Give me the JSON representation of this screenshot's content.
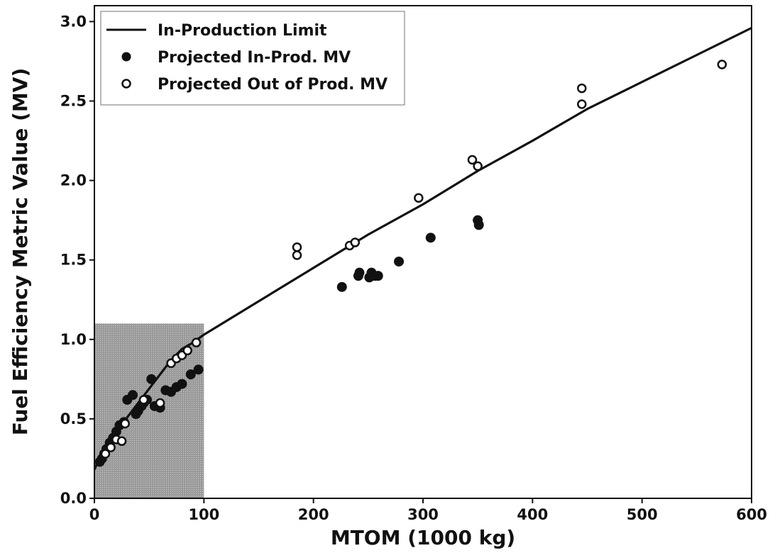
{
  "chart_data": {
    "type": "scatter",
    "xlabel": "MTOM (1000 kg)",
    "ylabel": "Fuel Efficiency Metric Value (MV)",
    "xlim": [
      0,
      600
    ],
    "ylim": [
      0,
      3.1
    ],
    "xticks": [
      "0",
      "100",
      "200",
      "300",
      "400",
      "500",
      "600"
    ],
    "yticks": [
      "0.0",
      "0.5",
      "1.0",
      "1.5",
      "2.0",
      "2.5",
      "3.0"
    ],
    "grid": false,
    "legend_position": "top-left",
    "shaded_region": {
      "x": [
        0,
        100
      ],
      "y": [
        0,
        1.1
      ]
    },
    "series": [
      {
        "name": "In-Production Limit",
        "kind": "line",
        "x": [
          0,
          5,
          10,
          20,
          30,
          40,
          50,
          60,
          70,
          80,
          90,
          100,
          150,
          200,
          250,
          300,
          350,
          400,
          450,
          500,
          550,
          600
        ],
        "y": [
          0.18,
          0.26,
          0.31,
          0.41,
          0.51,
          0.6,
          0.69,
          0.78,
          0.87,
          0.94,
          0.98,
          1.03,
          1.24,
          1.45,
          1.66,
          1.85,
          2.06,
          2.25,
          2.45,
          2.62,
          2.79,
          2.96
        ]
      },
      {
        "name": "Projected In-Prod. MV",
        "kind": "filled",
        "x": [
          226,
          241,
          242,
          251,
          253,
          256,
          259,
          278,
          307,
          350,
          351,
          5,
          7,
          9,
          11,
          14,
          17,
          20,
          23,
          27,
          30,
          35,
          38,
          40,
          43,
          45,
          48,
          52,
          55,
          60,
          65,
          70,
          75,
          80,
          88,
          95
        ],
        "y": [
          1.33,
          1.4,
          1.42,
          1.39,
          1.42,
          1.4,
          1.4,
          1.49,
          1.64,
          1.75,
          1.72,
          0.23,
          0.25,
          0.28,
          0.31,
          0.35,
          0.38,
          0.42,
          0.46,
          0.48,
          0.62,
          0.65,
          0.53,
          0.55,
          0.58,
          0.6,
          0.62,
          0.75,
          0.58,
          0.57,
          0.68,
          0.67,
          0.7,
          0.72,
          0.78,
          0.81
        ]
      },
      {
        "name": "Projected Out of Prod. MV",
        "kind": "hollow",
        "x": [
          185,
          185,
          233,
          238,
          296,
          345,
          350,
          445,
          445,
          573,
          10,
          15,
          20,
          25,
          28,
          45,
          60,
          70,
          75,
          80,
          85,
          93
        ],
        "y": [
          1.58,
          1.53,
          1.59,
          1.61,
          1.89,
          2.13,
          2.09,
          2.58,
          2.48,
          2.73,
          0.28,
          0.32,
          0.37,
          0.36,
          0.47,
          0.62,
          0.6,
          0.85,
          0.88,
          0.9,
          0.93,
          0.98
        ]
      }
    ]
  }
}
